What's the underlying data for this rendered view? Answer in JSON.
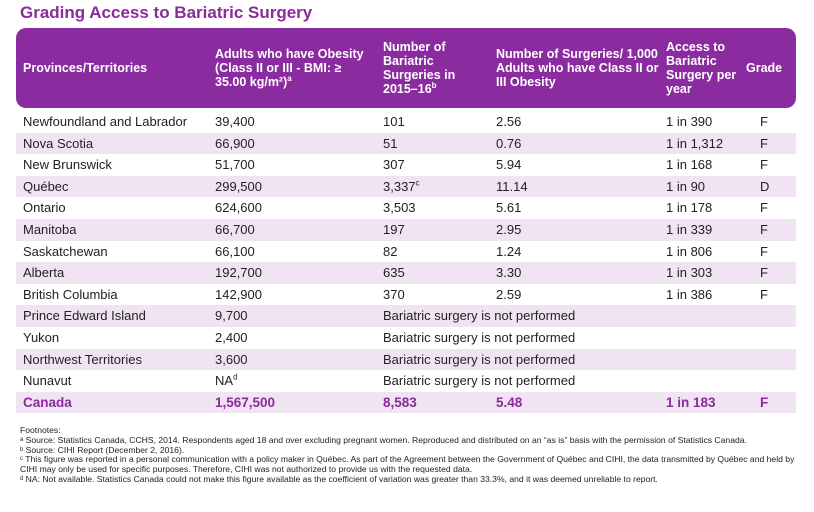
{
  "title": "Grading Access to Bariatric Surgery",
  "headers": {
    "province": "Provinces/Territories",
    "adults": "Adults who have Obesity (Class II or III - BMI: ≥ 35.00 kg/m²)",
    "adults_sup": "a",
    "surgeries": "Number of Bariatric Surgeries in 2015–16",
    "surgeries_sup": "b",
    "per1000": "Number of Surgeries/ 1,000 Adults who have Class II or III Obesity",
    "access": "Access to Bariatric Surgery per year",
    "grade": "Grade"
  },
  "rows": [
    {
      "province": "Newfoundland and Labrador",
      "adults": "39,400",
      "adults_sup": "",
      "surgeries": "101",
      "surgeries_sup": "",
      "per1000": "2.56",
      "access": "1 in 390",
      "grade": "F"
    },
    {
      "province": "Nova Scotia",
      "adults": "66,900",
      "adults_sup": "",
      "surgeries": "51",
      "surgeries_sup": "",
      "per1000": "0.76",
      "access": "1 in 1,312",
      "grade": "F"
    },
    {
      "province": "New Brunswick",
      "adults": "51,700",
      "adults_sup": "",
      "surgeries": "307",
      "surgeries_sup": "",
      "per1000": "5.94",
      "access": "1 in 168",
      "grade": "F"
    },
    {
      "province": "Québec",
      "adults": "299,500",
      "adults_sup": "",
      "surgeries": "3,337",
      "surgeries_sup": "c",
      "per1000": "11.14",
      "access": "1 in 90",
      "grade": "D"
    },
    {
      "province": "Ontario",
      "adults": "624,600",
      "adults_sup": "",
      "surgeries": "3,503",
      "surgeries_sup": "",
      "per1000": "5.61",
      "access": "1 in 178",
      "grade": "F"
    },
    {
      "province": "Manitoba",
      "adults": "66,700",
      "adults_sup": "",
      "surgeries": "197",
      "surgeries_sup": "",
      "per1000": "2.95",
      "access": "1 in 339",
      "grade": "F"
    },
    {
      "province": "Saskatchewan",
      "adults": "66,100",
      "adults_sup": "",
      "surgeries": "82",
      "surgeries_sup": "",
      "per1000": "1.24",
      "access": "1 in 806",
      "grade": "F"
    },
    {
      "province": "Alberta",
      "adults": "192,700",
      "adults_sup": "",
      "surgeries": "635",
      "surgeries_sup": "",
      "per1000": "3.30",
      "access": "1 in 303",
      "grade": "F"
    },
    {
      "province": "British Columbia",
      "adults": "142,900",
      "adults_sup": "",
      "surgeries": "370",
      "surgeries_sup": "",
      "per1000": "2.59",
      "access": "1 in 386",
      "grade": "F"
    },
    {
      "province": "Prince Edward Island",
      "adults": "9,700",
      "adults_sup": "",
      "surgeries": "Bariatric surgery is not performed",
      "surgeries_sup": "",
      "per1000": "",
      "access": "",
      "grade": ""
    },
    {
      "province": "Yukon",
      "adults": "2,400",
      "adults_sup": "",
      "surgeries": "Bariatric surgery is not performed",
      "surgeries_sup": "",
      "per1000": "",
      "access": "",
      "grade": ""
    },
    {
      "province": "Northwest Territories",
      "adults": "3,600",
      "adults_sup": "",
      "surgeries": "Bariatric surgery is not performed",
      "surgeries_sup": "",
      "per1000": "",
      "access": "",
      "grade": ""
    },
    {
      "province": "Nunavut",
      "adults": "NA",
      "adults_sup": "d",
      "surgeries": "Bariatric surgery is not performed",
      "surgeries_sup": "",
      "per1000": "",
      "access": "",
      "grade": ""
    }
  ],
  "total": {
    "province": "Canada",
    "adults": "1,567,500",
    "surgeries": "8,583",
    "per1000": "5.48",
    "access": "1 in 183",
    "grade": "F"
  },
  "footnotes": {
    "heading": "Footnotes:",
    "items": [
      "ᵃ Source: Statistics Canada, CCHS, 2014. Respondents aged 18 and over excluding pregnant women. Reproduced and distributed on an “as is” basis with the permission of Statistics Canada.",
      "ᵇ Source: CIHI Report (December 2, 2016).",
      "ᶜ This figure was reported in a personal communication with a policy maker in Québec. As part of the Agreement between the Government of Québec and CIHI, the data transmitted by Québec and held by CIHI may only be used for specific purposes. Therefore, CIHI was not authorized to provide us with the requested data.",
      "ᵈ NA: Not available. Statistics Canada could not make this figure available as the coefficient of variation was greater than 33.3%, and it was deemed unreliable to report."
    ]
  },
  "colors": {
    "accent": "#8b2ba0",
    "row_stripe": "#f1e4f2"
  }
}
